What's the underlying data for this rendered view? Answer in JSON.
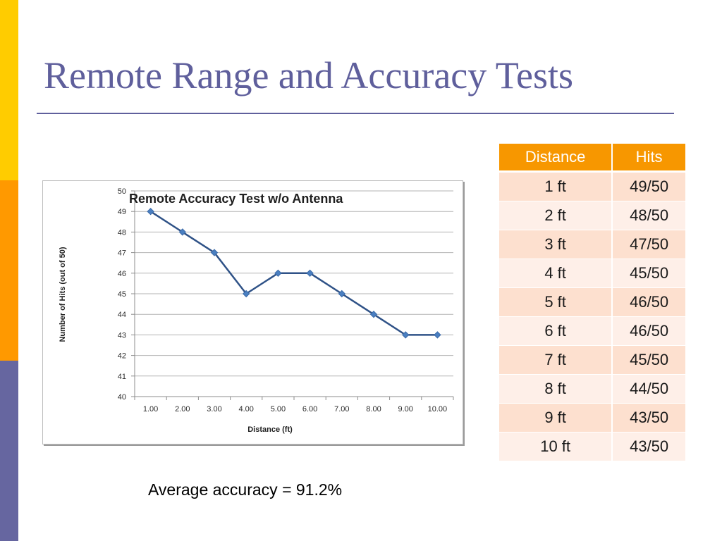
{
  "slide": {
    "title": "Remote Range and Accuracy Tests",
    "accent_colors": [
      "#ffcc00",
      "#ff9900",
      "#6666a0"
    ],
    "table_header_color": "#f79700",
    "average_note": "Average accuracy = 91.2%"
  },
  "table": {
    "headers": [
      "Distance",
      "Hits"
    ],
    "rows": [
      [
        "1 ft",
        "49/50"
      ],
      [
        "2 ft",
        "48/50"
      ],
      [
        "3 ft",
        "47/50"
      ],
      [
        "4 ft",
        "45/50"
      ],
      [
        "5 ft",
        "46/50"
      ],
      [
        "6 ft",
        "46/50"
      ],
      [
        "7 ft",
        "45/50"
      ],
      [
        "8 ft",
        "44/50"
      ],
      [
        "9 ft",
        "43/50"
      ],
      [
        "10 ft",
        "43/50"
      ]
    ]
  },
  "chart_data": {
    "type": "line",
    "title": "Remote Accuracy Test w/o Antenna",
    "xlabel": "Distance (ft)",
    "ylabel": "Number of Hits (out of 50)",
    "categories": [
      "1.00",
      "2.00",
      "3.00",
      "4.00",
      "5.00",
      "6.00",
      "7.00",
      "8.00",
      "9.00",
      "10.00"
    ],
    "series": [
      {
        "values": [
          49,
          48,
          47,
          45,
          46,
          46,
          45,
          44,
          43,
          43
        ],
        "color": "#2f5287",
        "marker": "diamond"
      }
    ],
    "ylim": [
      40,
      50
    ],
    "yticks": [
      40,
      41,
      42,
      43,
      44,
      45,
      46,
      47,
      48,
      49,
      50
    ],
    "grid": true,
    "legend": "none"
  }
}
